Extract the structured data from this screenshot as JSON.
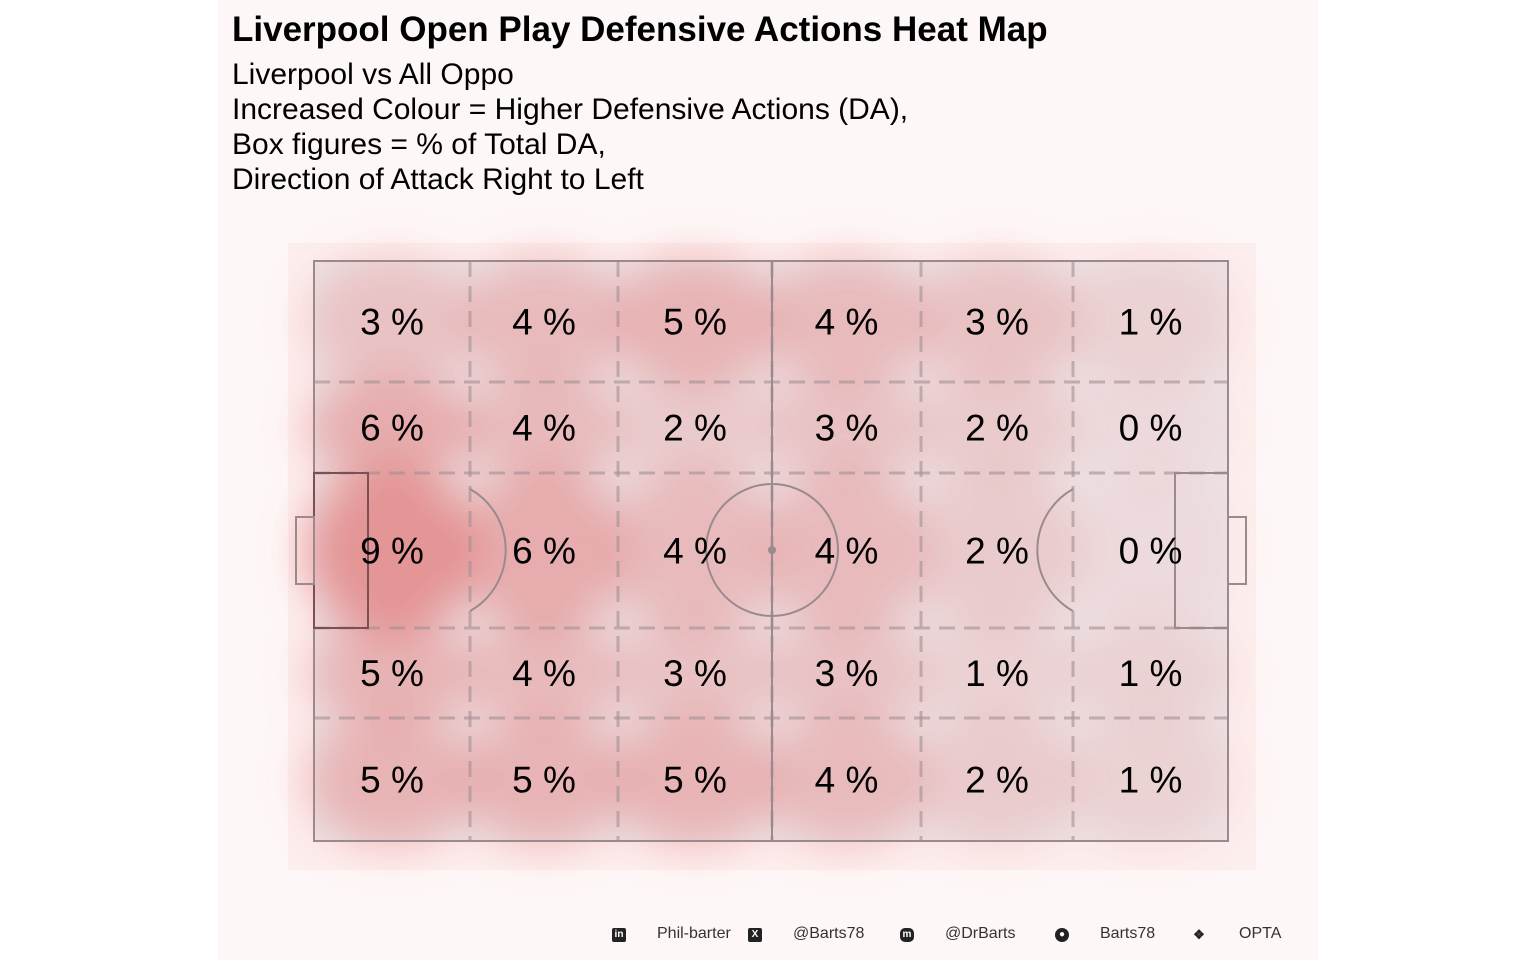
{
  "chart_data": {
    "type": "heatmap",
    "title": "Liverpool Open Play Defensive Actions Heat Map",
    "subtitle_lines": [
      "Liverpool vs All Oppo",
      "Increased Colour = Higher Defensive Actions (DA),",
      "Box figures = % of Total DA,",
      "Direction of Attack Right to Left"
    ],
    "grid_rows": 5,
    "grid_cols": 6,
    "values_percent": [
      [
        3,
        4,
        5,
        4,
        3,
        1
      ],
      [
        6,
        4,
        2,
        3,
        2,
        0
      ],
      [
        9,
        6,
        4,
        4,
        2,
        0
      ],
      [
        5,
        4,
        3,
        3,
        1,
        1
      ],
      [
        5,
        5,
        5,
        4,
        2,
        1
      ]
    ],
    "cell_label_suffix": " %",
    "colors": {
      "heat": "#e07070",
      "pitch_bg": "#ede3e5",
      "lines": "#9a8a8e",
      "panel": "#fef7f7"
    }
  },
  "footer": {
    "items": [
      {
        "icon": "linkedin-icon",
        "text": "Phil-barter"
      },
      {
        "icon": "x-twitter-icon",
        "text": "@Barts78"
      },
      {
        "icon": "mastodon-icon",
        "text": "@DrBarts"
      },
      {
        "icon": "github-icon",
        "text": "Barts78"
      },
      {
        "icon": "dropbox-icon",
        "text": "OPTA"
      }
    ]
  }
}
